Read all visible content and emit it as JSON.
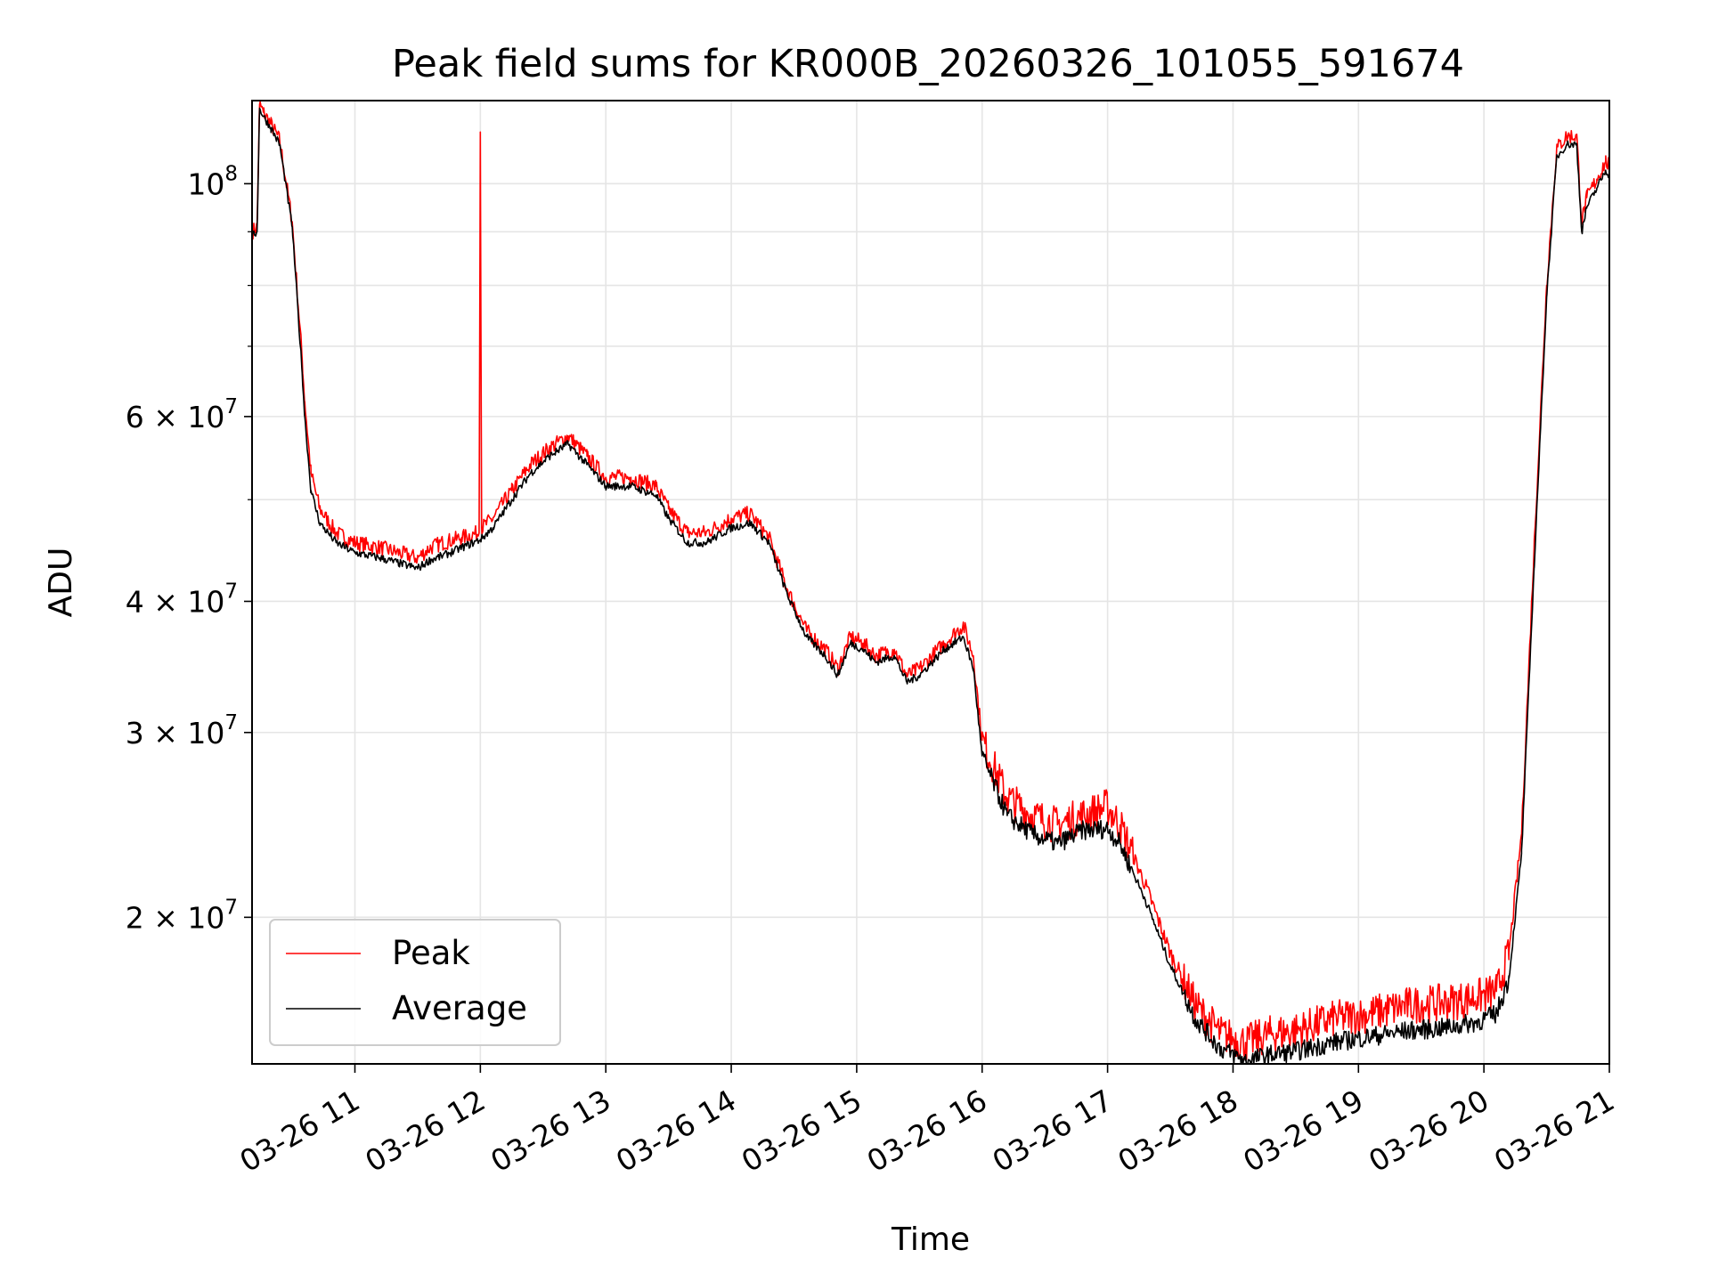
{
  "chart_data": {
    "type": "line",
    "title": "Peak field sums for KR000B_20260326_101055_591674",
    "xlabel": "Time",
    "ylabel": "ADU",
    "yscale": "log",
    "xlim_hours": [
      10.18,
      21.0
    ],
    "ylim": [
      14500000,
      120000000
    ],
    "grid": true,
    "legend_position": "lower-left",
    "x_tick_labels": [
      {
        "hour": 11,
        "label": "03-26 11"
      },
      {
        "hour": 12,
        "label": "03-26 12"
      },
      {
        "hour": 13,
        "label": "03-26 13"
      },
      {
        "hour": 14,
        "label": "03-26 14"
      },
      {
        "hour": 15,
        "label": "03-26 15"
      },
      {
        "hour": 16,
        "label": "03-26 16"
      },
      {
        "hour": 17,
        "label": "03-26 17"
      },
      {
        "hour": 18,
        "label": "03-26 18"
      },
      {
        "hour": 19,
        "label": "03-26 19"
      },
      {
        "hour": 20,
        "label": "03-26 20"
      },
      {
        "hour": 21,
        "label": "03-26 21"
      }
    ],
    "y_tick_labels": [
      {
        "value": 20000000,
        "mantissa": "2",
        "exponent": "7"
      },
      {
        "value": 30000000,
        "mantissa": "3",
        "exponent": "7"
      },
      {
        "value": 40000000,
        "mantissa": "4",
        "exponent": "7"
      },
      {
        "value": 60000000,
        "mantissa": "6",
        "exponent": "7"
      },
      {
        "value": 100000000,
        "base": "10",
        "exponent": "8"
      }
    ],
    "y_minor_grid": [
      50000000,
      70000000,
      80000000,
      90000000
    ],
    "series": [
      {
        "name": "Peak",
        "color": "#ff0000",
        "x_hours": [
          10.18,
          10.22,
          10.24,
          10.27,
          10.33,
          10.4,
          10.5,
          10.58,
          10.6,
          10.65,
          10.72,
          10.85,
          11.0,
          11.2,
          11.35,
          11.5,
          11.6,
          11.7,
          11.85,
          11.99,
          12.0,
          12.01,
          12.1,
          12.25,
          12.4,
          12.55,
          12.7,
          12.85,
          13.0,
          13.2,
          13.4,
          13.5,
          13.65,
          13.8,
          14.0,
          14.15,
          14.3,
          14.45,
          14.6,
          14.75,
          14.85,
          14.95,
          15.05,
          15.15,
          15.3,
          15.4,
          15.5,
          15.7,
          15.85,
          15.93,
          16.0,
          16.2,
          16.4,
          16.6,
          16.8,
          17.0,
          17.1,
          17.3,
          17.5,
          17.7,
          17.9,
          18.1,
          18.3,
          18.5,
          18.8,
          19.1,
          19.4,
          19.7,
          19.95,
          20.1,
          20.2,
          20.3,
          20.4,
          20.5,
          20.58,
          20.66,
          20.74,
          20.78,
          20.82,
          20.9,
          20.97,
          21.0
        ],
        "values": [
          90000000,
          91000000,
          119000000,
          117000000,
          114000000,
          110000000,
          92000000,
          68000000,
          62000000,
          53000000,
          49000000,
          46500000,
          45500000,
          45000000,
          44500000,
          44000000,
          45000000,
          45500000,
          46000000,
          46500000,
          112000000,
          47000000,
          48000000,
          51000000,
          54000000,
          56000000,
          57500000,
          55000000,
          52500000,
          52500000,
          51500000,
          49000000,
          46500000,
          46500000,
          48000000,
          48500000,
          46000000,
          41000000,
          37500000,
          36000000,
          34500000,
          37000000,
          36500000,
          35500000,
          36000000,
          34000000,
          34500000,
          36500000,
          38000000,
          35500000,
          29500000,
          26000000,
          25000000,
          24500000,
          25000000,
          25500000,
          24500000,
          21500000,
          18500000,
          16500000,
          15500000,
          15200000,
          15500000,
          15600000,
          16000000,
          16200000,
          16500000,
          16600000,
          16800000,
          17000000,
          18500000,
          24000000,
          45000000,
          80000000,
          108000000,
          111000000,
          111000000,
          92000000,
          97000000,
          101000000,
          105000000,
          104000000
        ]
      },
      {
        "name": "Average",
        "color": "#000000",
        "x_hours": [
          10.18,
          10.22,
          10.24,
          10.27,
          10.33,
          10.4,
          10.5,
          10.58,
          10.6,
          10.65,
          10.72,
          10.85,
          11.0,
          11.2,
          11.35,
          11.5,
          11.6,
          11.7,
          11.85,
          12.0,
          12.1,
          12.25,
          12.4,
          12.55,
          12.7,
          12.85,
          13.0,
          13.2,
          13.4,
          13.5,
          13.65,
          13.8,
          14.0,
          14.15,
          14.3,
          14.45,
          14.6,
          14.75,
          14.85,
          14.95,
          15.05,
          15.15,
          15.3,
          15.4,
          15.5,
          15.7,
          15.85,
          15.93,
          16.0,
          16.2,
          16.4,
          16.6,
          16.8,
          17.0,
          17.1,
          17.3,
          17.5,
          17.7,
          17.9,
          18.1,
          18.3,
          18.5,
          18.8,
          19.1,
          19.4,
          19.7,
          19.95,
          20.1,
          20.2,
          20.3,
          20.4,
          20.5,
          20.58,
          20.66,
          20.74,
          20.78,
          20.82,
          20.9,
          20.97,
          21.0
        ],
        "values": [
          89000000,
          90000000,
          118000000,
          116000000,
          113000000,
          109000000,
          91000000,
          66000000,
          60000000,
          51000000,
          47500000,
          45500000,
          44500000,
          44000000,
          43500000,
          43000000,
          43800000,
          44200000,
          45000000,
          45800000,
          47000000,
          50000000,
          53000000,
          55000000,
          56500000,
          54000000,
          51500000,
          51500000,
          50500000,
          48000000,
          45500000,
          45500000,
          47000000,
          47500000,
          45500000,
          40500000,
          37000000,
          35500000,
          34000000,
          36500000,
          36000000,
          35000000,
          35500000,
          33500000,
          34000000,
          36000000,
          37000000,
          34500000,
          28500000,
          25000000,
          24000000,
          23500000,
          24200000,
          24300000,
          23500000,
          20800000,
          18000000,
          16000000,
          15000000,
          14600000,
          14800000,
          14900000,
          15200000,
          15400000,
          15600000,
          15700000,
          15900000,
          16200000,
          17500000,
          23000000,
          43000000,
          78000000,
          106000000,
          109000000,
          109000000,
          90000000,
          95000000,
          99000000,
          103000000,
          102000000
        ]
      }
    ]
  }
}
